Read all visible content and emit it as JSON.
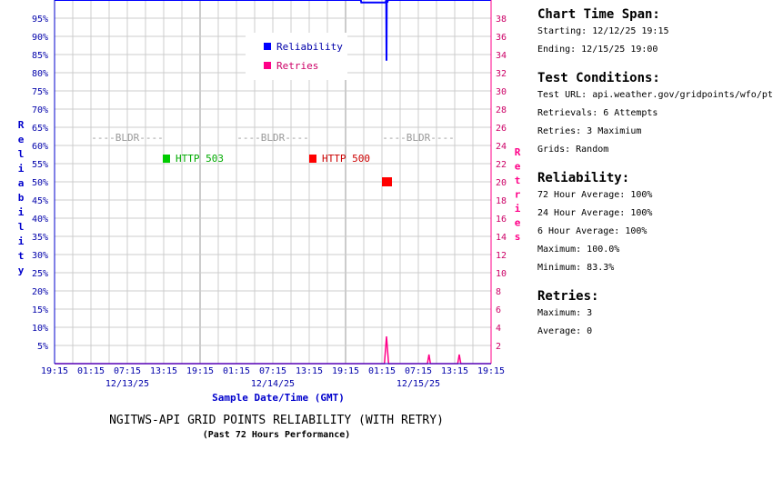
{
  "chart_data": {
    "type": "line",
    "title": "NGITWS-API GRID POINTS RELIABILITY (WITH RETRY)",
    "subtitle": "(Past 72 Hours Performance)",
    "xlabel": "Sample Date/Time (GMT)",
    "ylabel": "Reliability",
    "y2label": "Retries",
    "ylim": [
      0,
      100
    ],
    "y2lim": [
      0,
      40
    ],
    "xlim": [
      0,
      72
    ],
    "grid": true,
    "legend_position": "top-center",
    "x_tick_labels": [
      "19:15",
      "01:15",
      "07:15",
      "13:15",
      "19:15",
      "01:15",
      "07:15",
      "13:15",
      "19:15",
      "01:15",
      "07:15",
      "13:15",
      "19:15"
    ],
    "x_date_labels": [
      "12/13/25",
      "12/14/25",
      "12/15/25"
    ],
    "y_tick_labels": [
      "5%",
      "10%",
      "15%",
      "20%",
      "25%",
      "30%",
      "35%",
      "40%",
      "45%",
      "50%",
      "55%",
      "60%",
      "65%",
      "70%",
      "75%",
      "80%",
      "85%",
      "90%",
      "95%"
    ],
    "y2_tick_labels": [
      "2",
      "4",
      "6",
      "8",
      "10",
      "12",
      "14",
      "16",
      "18",
      "20",
      "22",
      "24",
      "26",
      "28",
      "30",
      "32",
      "34",
      "36",
      "38"
    ],
    "bldr_label": "----BLDR----",
    "series": [
      {
        "name": "Reliability",
        "color": "#0000ff",
        "x": [
          0,
          50.5,
          50.6,
          54.6,
          54.7,
          54.75,
          54.8,
          54.9,
          55.0,
          58.5,
          72
        ],
        "y": [
          100,
          100,
          99.3,
          99.3,
          100,
          83.3,
          100,
          99.3,
          100,
          100,
          100
        ]
      },
      {
        "name": "Retries",
        "color": "#ff0088",
        "x": [
          0,
          54.4,
          54.75,
          55.1,
          61.5,
          61.75,
          62.0,
          66.5,
          66.75,
          67.0,
          72
        ],
        "y": [
          0,
          0,
          3,
          0,
          0,
          1,
          0,
          0,
          1,
          0,
          0
        ]
      }
    ],
    "events": [
      {
        "label": "HTTP 503",
        "color": "#00cc00",
        "text_color": "#00aa00"
      },
      {
        "label": "HTTP 500",
        "color": "#ff0000",
        "text_color": "#cc0000"
      }
    ],
    "error_marker": {
      "x": 54.75,
      "y2": 20,
      "color": "#ff0000"
    }
  },
  "sidebar": {
    "span_title": "Chart Time Span:",
    "starting": "Starting: 12/12/25 19:15",
    "ending": "Ending: 12/15/25 19:00",
    "conditions_title": "Test Conditions:",
    "test_url": "Test URL: api.weather.gov/gridpoints/wfo/pt",
    "retrievals": "Retrievals:  6 Attempts",
    "retries": "Retries:  3 Maximium",
    "grids": "Grids:  Random",
    "reliability_title": "Reliability:",
    "avg72": "72 Hour Average: 100%",
    "avg24": "24 Hour Average: 100%",
    "avg6": "6 Hour Average: 100%",
    "maximum": "Maximum: 100.0%",
    "minimum": "Minimum: 83.3%",
    "retries_title": "Retries:",
    "retries_max": "Maximum: 3",
    "retries_avg": "Average: 0"
  }
}
